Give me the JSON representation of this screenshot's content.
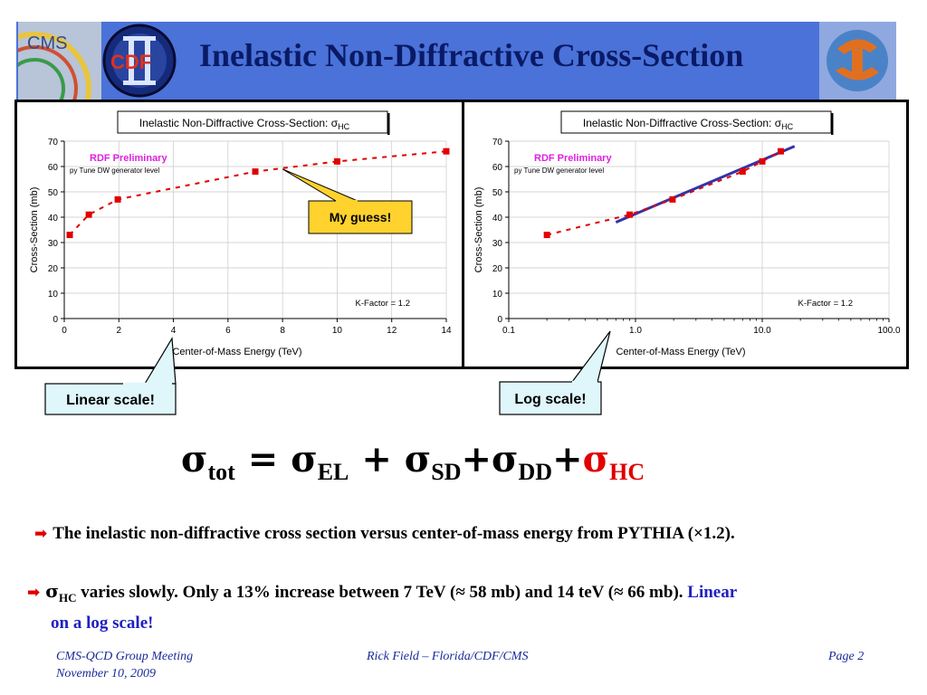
{
  "header": {
    "title": "Inelastic Non-Diffractive Cross-Section",
    "logos": {
      "left": "CMS",
      "middle": "CDF",
      "right": "UF-logo"
    }
  },
  "chart_data": [
    {
      "type": "line",
      "scale": "linear",
      "title_main": "Inelastic Non-Diffractive Cross-Section: σ",
      "title_sub": "HC",
      "annotation": "RDF Preliminary",
      "annotation_sub": "py Tune DW generator level",
      "kfactor": "K-Factor = 1.2",
      "xlabel": "Center-of-Mass Energy (TeV)",
      "ylabel": "Cross-Section (mb)",
      "xlim": [
        0,
        14
      ],
      "ylim": [
        0,
        70
      ],
      "xticks": [
        "0",
        "2",
        "4",
        "6",
        "8",
        "10",
        "12",
        "14"
      ],
      "yticks": [
        "0",
        "10",
        "20",
        "30",
        "40",
        "50",
        "60",
        "70"
      ],
      "grid": true,
      "series": [
        {
          "x": [
            0.2,
            0.9,
            1.96,
            7,
            10,
            14
          ],
          "y": [
            33,
            41,
            47,
            58,
            62,
            66
          ],
          "color": "#e00000"
        }
      ],
      "callout": "My guess!",
      "callout_target": {
        "x": 8,
        "y": 59
      }
    },
    {
      "type": "line",
      "scale": "log",
      "title_main": "Inelastic Non-Diffractive Cross-Section: σ",
      "title_sub": "HC",
      "annotation": "RDF Preliminary",
      "annotation_sub": "py Tune DW generator level",
      "kfactor": "K-Factor = 1.2",
      "xlabel": "Center-of-Mass Energy (TeV)",
      "ylabel": "Cross-Section (mb)",
      "xlim": [
        0.1,
        100
      ],
      "ylim": [
        0,
        70
      ],
      "xticks": [
        "0.1",
        "1.0",
        "10.0",
        "100.0"
      ],
      "yticks": [
        "0",
        "10",
        "20",
        "30",
        "40",
        "50",
        "60",
        "70"
      ],
      "grid": true,
      "series": [
        {
          "x": [
            0.2,
            0.9,
            1.96,
            7,
            10,
            14
          ],
          "y": [
            33,
            41,
            47,
            58,
            62,
            66
          ],
          "color": "#e00000"
        }
      ],
      "fit_line": {
        "x": [
          0.7,
          18
        ],
        "y": [
          38,
          68
        ],
        "color": "#3333aa"
      }
    }
  ],
  "callouts": {
    "linear": "Linear scale!",
    "log": "Log scale!",
    "guess": "My guess!"
  },
  "equation": {
    "sigma": "σ",
    "tot": "tot",
    "eq": " = ",
    "el": "EL",
    "plus": " + ",
    "sd": "SD",
    "plus2": "+",
    "dd": "DD",
    "plus3": "+",
    "hc": "HC"
  },
  "bullets": {
    "b1": "The inelastic non-diffractive cross section versus center-of-mass energy from PYTHIA (×1.2).",
    "b2_sigma": "σ",
    "b2_sub": "HC",
    "b2_text": " varies slowly.  Only a 13% increase between 7 TeV (≈ 58 mb) and 14 teV (≈ 66 mb).  ",
    "b2_blue_1": "Linear",
    "b2_blue_2": "on a log scale!"
  },
  "footer": {
    "meeting": "CMS-QCD Group Meeting",
    "date": "November 10, 2009",
    "author": "Rick Field – Florida/CDF/CMS",
    "page": "Page 2"
  },
  "colors": {
    "header": "#3a63c8",
    "title": "#0a1a66",
    "points": "#e00000",
    "fit": "#3333aa",
    "callout_fill": "#ffd22e",
    "callout_blue": "#dff6fb",
    "accent_blue": "#2020c0"
  }
}
